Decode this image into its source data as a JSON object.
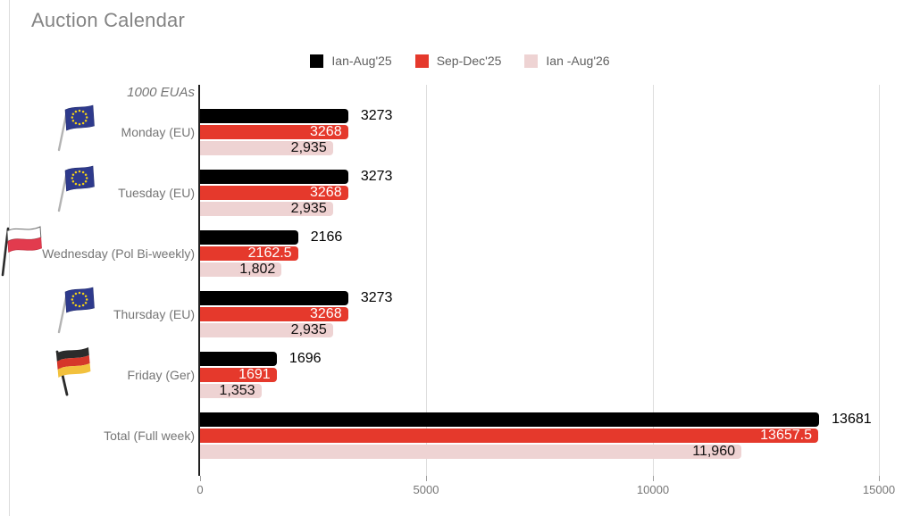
{
  "chart_data": {
    "type": "bar",
    "orientation": "horizontal",
    "title": "Auction Calendar",
    "axis_label": "1000 EUAs",
    "legend_position": "top",
    "grid": true,
    "xlim": [
      0,
      15000
    ],
    "x_ticks": [
      0,
      5000,
      10000,
      15000
    ],
    "x_tick_labels": [
      "0",
      "5000",
      "10000",
      "15000"
    ],
    "categories": [
      "Monday (EU)",
      "Tuesday (EU)",
      "Wednesday (Pol Bi-weekly)",
      "Thursday (EU)",
      "Friday (Ger)",
      "Total (Full week)"
    ],
    "category_flags": [
      "eu",
      "eu",
      "poland",
      "eu",
      "germany",
      null
    ],
    "series": [
      {
        "name": "Ian-Aug'25",
        "color": "#000000",
        "label_style": "outside-black",
        "values": [
          3273,
          3273,
          2166,
          3273,
          1696,
          13681
        ],
        "labels": [
          "3273",
          "3273",
          "2166",
          "3273",
          "1696",
          "13681"
        ]
      },
      {
        "name": "Sep-Dec'25",
        "color": "#e5392c",
        "label_style": "inside-white",
        "values": [
          3268,
          3268,
          2162.5,
          3268,
          1691,
          13657.5
        ],
        "labels": [
          "3268",
          "3268",
          "2162.5",
          "3268",
          "1691",
          "13657.5"
        ]
      },
      {
        "name": "Ian -Aug'26",
        "color": "#eed3d3",
        "label_style": "inside-dark",
        "values": [
          2935,
          2935,
          1802,
          2935,
          1353,
          11960
        ],
        "labels": [
          "2,935",
          "2,935",
          "1,802",
          "2,935",
          "1,353",
          "11,960"
        ]
      }
    ]
  }
}
